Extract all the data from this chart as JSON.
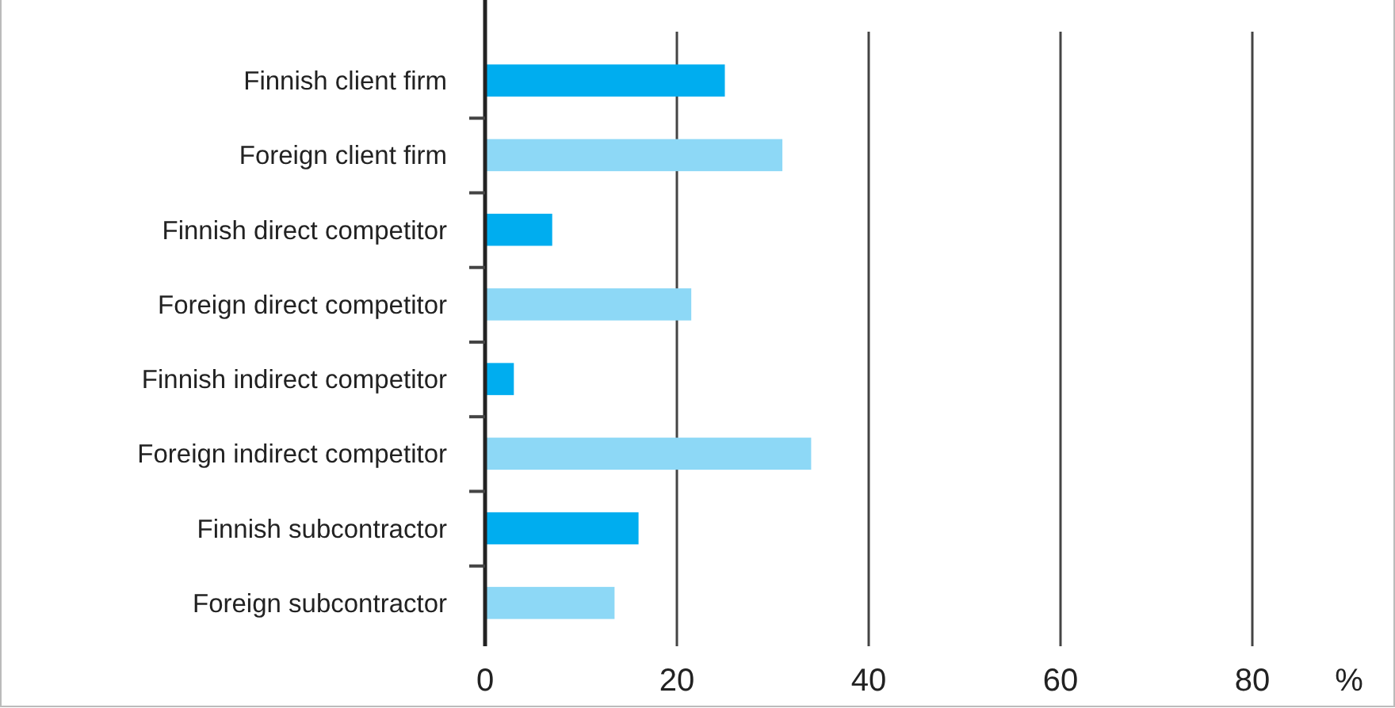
{
  "chart_data": {
    "type": "bar",
    "orientation": "horizontal",
    "xlabel": "%",
    "categories": [
      "Finnish client firm",
      "Foreign client firm",
      "Finnish direct competitor",
      "Foreign direct competitor",
      "Finnish indirect competitor",
      "Foreign indirect competitor",
      "Finnish subcontractor",
      "Foreign subcontractor"
    ],
    "values": [
      25,
      31,
      7,
      21.5,
      3,
      34,
      16,
      13.5
    ],
    "colors": [
      "#00adef",
      "#8dd8f6",
      "#00adef",
      "#8dd8f6",
      "#00adef",
      "#8dd8f6",
      "#00adef",
      "#8dd8f6"
    ],
    "xlim": [
      0,
      80
    ],
    "xticks": [
      0,
      20,
      40,
      60,
      80
    ],
    "grid": "x"
  }
}
